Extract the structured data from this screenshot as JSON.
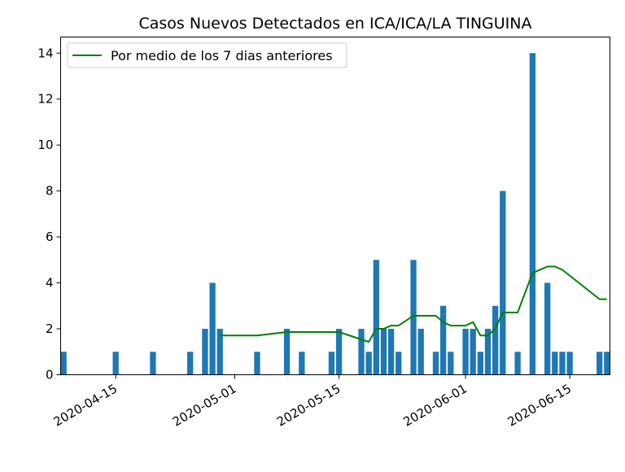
{
  "chart_data": {
    "type": "bar",
    "title": "Casos Nuevos Detectados en ICA/ICA/LA TINGUINA",
    "xlabel": "",
    "ylabel": "",
    "x_axis_type": "date",
    "xlim": [
      "2020-04-08",
      "2020-06-20"
    ],
    "ylim": [
      0,
      14.7
    ],
    "yticks": [
      0,
      2,
      4,
      6,
      8,
      10,
      12,
      14
    ],
    "xticks": [
      "2020-04-15",
      "2020-05-01",
      "2020-05-15",
      "2020-06-01",
      "2020-06-15"
    ],
    "grid": false,
    "legend_position": "top-left",
    "series": [
      {
        "kind": "bar",
        "color": "#1f77b4",
        "points": [
          {
            "x": "2020-04-08",
            "y": 1
          },
          {
            "x": "2020-04-15",
            "y": 1
          },
          {
            "x": "2020-04-20",
            "y": 1
          },
          {
            "x": "2020-04-25",
            "y": 1
          },
          {
            "x": "2020-04-27",
            "y": 2
          },
          {
            "x": "2020-04-28",
            "y": 4
          },
          {
            "x": "2020-04-29",
            "y": 2
          },
          {
            "x": "2020-05-04",
            "y": 1
          },
          {
            "x": "2020-05-08",
            "y": 2
          },
          {
            "x": "2020-05-10",
            "y": 1
          },
          {
            "x": "2020-05-14",
            "y": 1
          },
          {
            "x": "2020-05-15",
            "y": 2
          },
          {
            "x": "2020-05-18",
            "y": 2
          },
          {
            "x": "2020-05-19",
            "y": 1
          },
          {
            "x": "2020-05-20",
            "y": 5
          },
          {
            "x": "2020-05-21",
            "y": 2
          },
          {
            "x": "2020-05-22",
            "y": 2
          },
          {
            "x": "2020-05-23",
            "y": 1
          },
          {
            "x": "2020-05-25",
            "y": 5
          },
          {
            "x": "2020-05-26",
            "y": 2
          },
          {
            "x": "2020-05-28",
            "y": 1
          },
          {
            "x": "2020-05-29",
            "y": 3
          },
          {
            "x": "2020-05-30",
            "y": 1
          },
          {
            "x": "2020-06-01",
            "y": 2
          },
          {
            "x": "2020-06-02",
            "y": 2
          },
          {
            "x": "2020-06-03",
            "y": 1
          },
          {
            "x": "2020-06-04",
            "y": 2
          },
          {
            "x": "2020-06-05",
            "y": 3
          },
          {
            "x": "2020-06-06",
            "y": 8
          },
          {
            "x": "2020-06-08",
            "y": 1
          },
          {
            "x": "2020-06-10",
            "y": 14
          },
          {
            "x": "2020-06-12",
            "y": 4
          },
          {
            "x": "2020-06-13",
            "y": 1
          },
          {
            "x": "2020-06-14",
            "y": 1
          },
          {
            "x": "2020-06-15",
            "y": 1
          },
          {
            "x": "2020-06-19",
            "y": 1
          },
          {
            "x": "2020-06-20",
            "y": 1
          }
        ]
      },
      {
        "kind": "line",
        "name": "Por medio de los 7 dias anteriores",
        "color": "#008000",
        "points": [
          {
            "x": "2020-04-29",
            "y": 1.71
          },
          {
            "x": "2020-05-04",
            "y": 1.71
          },
          {
            "x": "2020-05-08",
            "y": 1.86
          },
          {
            "x": "2020-05-15",
            "y": 1.86
          },
          {
            "x": "2020-05-19",
            "y": 1.43
          },
          {
            "x": "2020-05-20",
            "y": 2.0
          },
          {
            "x": "2020-05-21",
            "y": 2.0
          },
          {
            "x": "2020-05-22",
            "y": 2.14
          },
          {
            "x": "2020-05-23",
            "y": 2.14
          },
          {
            "x": "2020-05-25",
            "y": 2.57
          },
          {
            "x": "2020-05-28",
            "y": 2.57
          },
          {
            "x": "2020-05-29",
            "y": 2.29
          },
          {
            "x": "2020-05-30",
            "y": 2.14
          },
          {
            "x": "2020-06-01",
            "y": 2.14
          },
          {
            "x": "2020-06-02",
            "y": 2.29
          },
          {
            "x": "2020-06-03",
            "y": 1.71
          },
          {
            "x": "2020-06-04",
            "y": 1.71
          },
          {
            "x": "2020-06-05",
            "y": 2.0
          },
          {
            "x": "2020-06-06",
            "y": 2.71
          },
          {
            "x": "2020-06-08",
            "y": 2.71
          },
          {
            "x": "2020-06-10",
            "y": 4.43
          },
          {
            "x": "2020-06-12",
            "y": 4.71
          },
          {
            "x": "2020-06-13",
            "y": 4.71
          },
          {
            "x": "2020-06-14",
            "y": 4.57
          },
          {
            "x": "2020-06-19",
            "y": 3.29
          },
          {
            "x": "2020-06-20",
            "y": 3.29
          }
        ]
      }
    ]
  }
}
